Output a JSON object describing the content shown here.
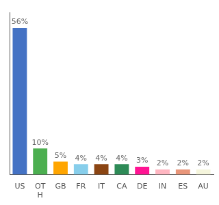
{
  "chart_data": {
    "type": "bar",
    "categories": [
      "US",
      "OT\nH",
      "GB",
      "FR",
      "IT",
      "CA",
      "DE",
      "IN",
      "ES",
      "AU"
    ],
    "values": [
      56,
      10,
      5,
      4,
      4,
      4,
      3,
      2,
      2,
      2
    ],
    "value_labels": [
      "56%",
      "10%",
      "5%",
      "4%",
      "4%",
      "4%",
      "3%",
      "2%",
      "2%",
      "2%"
    ],
    "colors": [
      "#4472c4",
      "#4CAF50",
      "#FFA500",
      "#87CEEB",
      "#8B4513",
      "#2E8B57",
      "#FF1493",
      "#FFB6C1",
      "#E9967A",
      "#F5F5DC"
    ],
    "ylim": [
      0,
      62
    ],
    "grid": false,
    "tick_labels": "x",
    "data_labels": true
  }
}
